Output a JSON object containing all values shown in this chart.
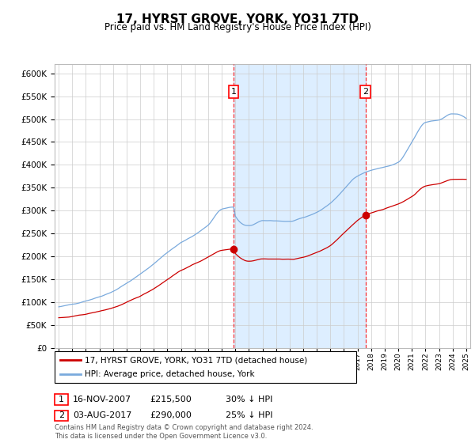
{
  "title": "17, HYRST GROVE, YORK, YO31 7TD",
  "subtitle": "Price paid vs. HM Land Registry's House Price Index (HPI)",
  "legend_line1": "17, HYRST GROVE, YORK, YO31 7TD (detached house)",
  "legend_line2": "HPI: Average price, detached house, York",
  "footnote": "Contains HM Land Registry data © Crown copyright and database right 2024.\nThis data is licensed under the Open Government Licence v3.0.",
  "purchase1_date": "16-NOV-2007",
  "purchase1_price": 215500,
  "purchase1_label": "30% ↓ HPI",
  "purchase2_date": "03-AUG-2017",
  "purchase2_price": 290000,
  "purchase2_label": "25% ↓ HPI",
  "purchase1_x": 2007.88,
  "purchase2_x": 2017.58,
  "ylim_min": 0,
  "ylim_max": 620000,
  "xlim_min": 1994.7,
  "xlim_max": 2025.3,
  "hpi_color": "#7aaadd",
  "price_color": "#cc0000",
  "shade_color": "#ddeeff",
  "grid_color": "#cccccc",
  "bg_color": "#ffffff"
}
